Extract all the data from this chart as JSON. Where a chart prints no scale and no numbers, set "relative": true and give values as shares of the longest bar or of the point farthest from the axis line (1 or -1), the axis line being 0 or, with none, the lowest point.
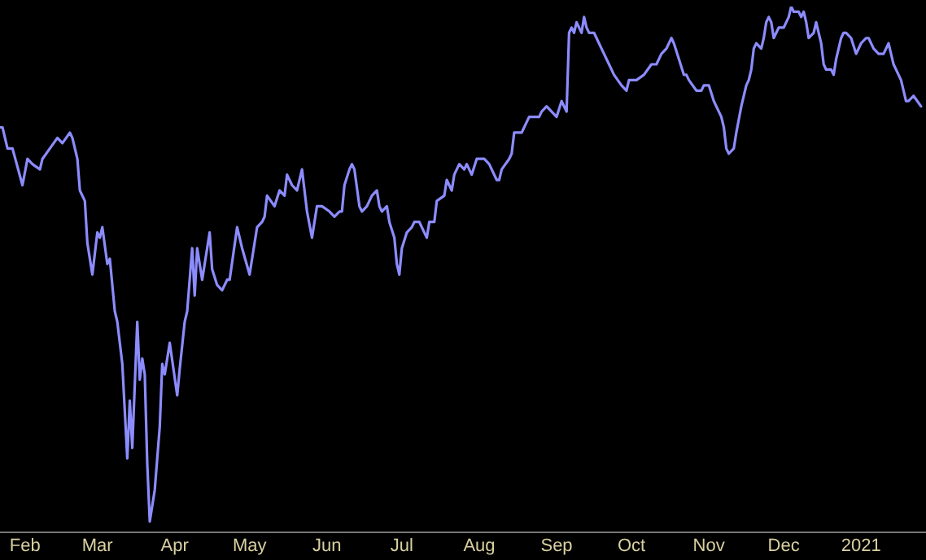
{
  "chart_data": {
    "type": "line",
    "relative": true,
    "xlim": [
      "2020-01-22",
      "2021-01-27"
    ],
    "xticks": [
      {
        "value": "2020-02-01",
        "label": "Feb"
      },
      {
        "value": "2020-03-01",
        "label": "Mar"
      },
      {
        "value": "2020-04-01",
        "label": "Apr"
      },
      {
        "value": "2020-05-01",
        "label": "May"
      },
      {
        "value": "2020-06-01",
        "label": "Jun"
      },
      {
        "value": "2020-07-01",
        "label": "Jul"
      },
      {
        "value": "2020-08-01",
        "label": "Aug"
      },
      {
        "value": "2020-09-01",
        "label": "Sep"
      },
      {
        "value": "2020-10-01",
        "label": "Oct"
      },
      {
        "value": "2020-11-01",
        "label": "Nov"
      },
      {
        "value": "2020-12-01",
        "label": "Dec"
      },
      {
        "value": "2021-01-01",
        "label": "2021"
      }
    ],
    "grid": false,
    "legend": false,
    "marker": "none",
    "line_style": "solid",
    "x": [
      "2020-01-22",
      "2020-01-23",
      "2020-01-25",
      "2020-01-27",
      "2020-01-31",
      "2020-02-02",
      "2020-02-04",
      "2020-02-07",
      "2020-02-08",
      "2020-02-11",
      "2020-02-14",
      "2020-02-16",
      "2020-02-19",
      "2020-02-20",
      "2020-02-22",
      "2020-02-23",
      "2020-02-25",
      "2020-02-26",
      "2020-02-28",
      "2020-03-01",
      "2020-03-02",
      "2020-03-03",
      "2020-03-05",
      "2020-03-06",
      "2020-03-08",
      "2020-03-09",
      "2020-03-11",
      "2020-03-12",
      "2020-03-13",
      "2020-03-14",
      "2020-03-15",
      "2020-03-17",
      "2020-03-18",
      "2020-03-19",
      "2020-03-20",
      "2020-03-21",
      "2020-03-22",
      "2020-03-24",
      "2020-03-26",
      "2020-03-27",
      "2020-03-28",
      "2020-03-30",
      "2020-04-02",
      "2020-04-03",
      "2020-04-05",
      "2020-04-06",
      "2020-04-08",
      "2020-04-09",
      "2020-04-10",
      "2020-04-12",
      "2020-04-14",
      "2020-04-15",
      "2020-04-16",
      "2020-04-18",
      "2020-04-20",
      "2020-04-22",
      "2020-04-23",
      "2020-04-26",
      "2020-04-28",
      "2020-05-01",
      "2020-05-03",
      "2020-05-04",
      "2020-05-06",
      "2020-05-07",
      "2020-05-08",
      "2020-05-11",
      "2020-05-13",
      "2020-05-15",
      "2020-05-16",
      "2020-05-18",
      "2020-05-20",
      "2020-05-22",
      "2020-05-24",
      "2020-05-26",
      "2020-05-28",
      "2020-05-30",
      "2020-06-02",
      "2020-06-04",
      "2020-06-06",
      "2020-06-07",
      "2020-06-08",
      "2020-06-10",
      "2020-06-11",
      "2020-06-12",
      "2020-06-14",
      "2020-06-15",
      "2020-06-17",
      "2020-06-19",
      "2020-06-21",
      "2020-06-22",
      "2020-06-23",
      "2020-06-25",
      "2020-06-26",
      "2020-06-28",
      "2020-06-29",
      "2020-06-30",
      "2020-07-01",
      "2020-07-03",
      "2020-07-05",
      "2020-07-06",
      "2020-07-08",
      "2020-07-10",
      "2020-07-11",
      "2020-07-12",
      "2020-07-14",
      "2020-07-15",
      "2020-07-18",
      "2020-07-19",
      "2020-07-21",
      "2020-07-22",
      "2020-07-24",
      "2020-07-26",
      "2020-07-27",
      "2020-07-29",
      "2020-07-31",
      "2020-08-02",
      "2020-08-03",
      "2020-08-05",
      "2020-08-08",
      "2020-08-09",
      "2020-08-10",
      "2020-08-13",
      "2020-08-14",
      "2020-08-15",
      "2020-08-16",
      "2020-08-18",
      "2020-08-19",
      "2020-08-21",
      "2020-08-25",
      "2020-08-26",
      "2020-08-28",
      "2020-08-30",
      "2020-09-01",
      "2020-09-03",
      "2020-09-05",
      "2020-09-06",
      "2020-09-07",
      "2020-09-08",
      "2020-09-09",
      "2020-09-11",
      "2020-09-12",
      "2020-09-13",
      "2020-09-14",
      "2020-09-16",
      "2020-09-18",
      "2020-09-20",
      "2020-09-22",
      "2020-09-24",
      "2020-09-27",
      "2020-09-29",
      "2020-09-30",
      "2020-10-03",
      "2020-10-06",
      "2020-10-09",
      "2020-10-11",
      "2020-10-13",
      "2020-10-15",
      "2020-10-17",
      "2020-10-18",
      "2020-10-20",
      "2020-10-22",
      "2020-10-23",
      "2020-10-24",
      "2020-10-27",
      "2020-10-29",
      "2020-10-30",
      "2020-11-01",
      "2020-11-03",
      "2020-11-05",
      "2020-11-06",
      "2020-11-07",
      "2020-11-08",
      "2020-11-09",
      "2020-11-11",
      "2020-11-12",
      "2020-11-14",
      "2020-11-16",
      "2020-11-17",
      "2020-11-18",
      "2020-11-19",
      "2020-11-20",
      "2020-11-22",
      "2020-11-23",
      "2020-11-24",
      "2020-11-25",
      "2020-11-26",
      "2020-11-27",
      "2020-11-28",
      "2020-11-29",
      "2020-12-01",
      "2020-12-03",
      "2020-12-04",
      "2020-12-05",
      "2020-12-07",
      "2020-12-08",
      "2020-12-09",
      "2020-12-10",
      "2020-12-11",
      "2020-12-13",
      "2020-12-14",
      "2020-12-15",
      "2020-12-16",
      "2020-12-17",
      "2020-12-18",
      "2020-12-20",
      "2020-12-21",
      "2020-12-22",
      "2020-12-24",
      "2020-12-25",
      "2020-12-26",
      "2020-12-28",
      "2020-12-30",
      "2021-01-01",
      "2021-01-03",
      "2021-01-04",
      "2021-01-06",
      "2021-01-08",
      "2021-01-10",
      "2021-01-12",
      "2021-01-14",
      "2021-01-17",
      "2021-01-19",
      "2021-01-20",
      "2021-01-22",
      "2021-01-25"
    ],
    "series": [
      {
        "color": "#8c8cff",
        "values": [
          0.77,
          0.77,
          0.73,
          0.73,
          0.66,
          0.71,
          0.7,
          0.69,
          0.71,
          0.73,
          0.75,
          0.74,
          0.76,
          0.75,
          0.71,
          0.65,
          0.63,
          0.55,
          0.49,
          0.57,
          0.56,
          0.58,
          0.51,
          0.52,
          0.42,
          0.4,
          0.32,
          0.23,
          0.14,
          0.25,
          0.16,
          0.4,
          0.29,
          0.33,
          0.3,
          0.13,
          0.02,
          0.08,
          0.2,
          0.32,
          0.3,
          0.36,
          0.26,
          0.31,
          0.4,
          0.42,
          0.54,
          0.45,
          0.54,
          0.48,
          0.54,
          0.57,
          0.5,
          0.47,
          0.46,
          0.48,
          0.48,
          0.58,
          0.54,
          0.49,
          0.55,
          0.58,
          0.59,
          0.6,
          0.64,
          0.62,
          0.65,
          0.64,
          0.68,
          0.66,
          0.65,
          0.69,
          0.61,
          0.56,
          0.62,
          0.62,
          0.61,
          0.6,
          0.61,
          0.61,
          0.66,
          0.69,
          0.7,
          0.69,
          0.62,
          0.61,
          0.62,
          0.64,
          0.65,
          0.62,
          0.61,
          0.62,
          0.59,
          0.56,
          0.51,
          0.49,
          0.54,
          0.57,
          0.58,
          0.59,
          0.59,
          0.57,
          0.56,
          0.59,
          0.59,
          0.63,
          0.64,
          0.67,
          0.65,
          0.68,
          0.7,
          0.69,
          0.7,
          0.68,
          0.71,
          0.71,
          0.71,
          0.7,
          0.67,
          0.67,
          0.69,
          0.71,
          0.72,
          0.76,
          0.76,
          0.76,
          0.77,
          0.79,
          0.79,
          0.8,
          0.81,
          0.8,
          0.79,
          0.82,
          0.8,
          0.95,
          0.96,
          0.95,
          0.97,
          0.95,
          0.98,
          0.96,
          0.95,
          0.95,
          0.93,
          0.91,
          0.89,
          0.87,
          0.85,
          0.84,
          0.86,
          0.86,
          0.87,
          0.89,
          0.89,
          0.91,
          0.92,
          0.94,
          0.93,
          0.9,
          0.87,
          0.87,
          0.86,
          0.84,
          0.84,
          0.85,
          0.85,
          0.82,
          0.8,
          0.79,
          0.77,
          0.73,
          0.72,
          0.73,
          0.76,
          0.81,
          0.85,
          0.86,
          0.88,
          0.92,
          0.93,
          0.92,
          0.94,
          0.97,
          0.98,
          0.97,
          0.94,
          0.95,
          0.96,
          0.96,
          0.98,
          1,
          0.99,
          0.99,
          0.98,
          0.99,
          0.97,
          0.94,
          0.95,
          0.97,
          0.95,
          0.93,
          0.89,
          0.88,
          0.88,
          0.87,
          0.9,
          0.94,
          0.95,
          0.95,
          0.94,
          0.91,
          0.93,
          0.94,
          0.94,
          0.92,
          0.91,
          0.91,
          0.93,
          0.89,
          0.86,
          0.82,
          0.82,
          0.83,
          0.81
        ]
      }
    ]
  }
}
